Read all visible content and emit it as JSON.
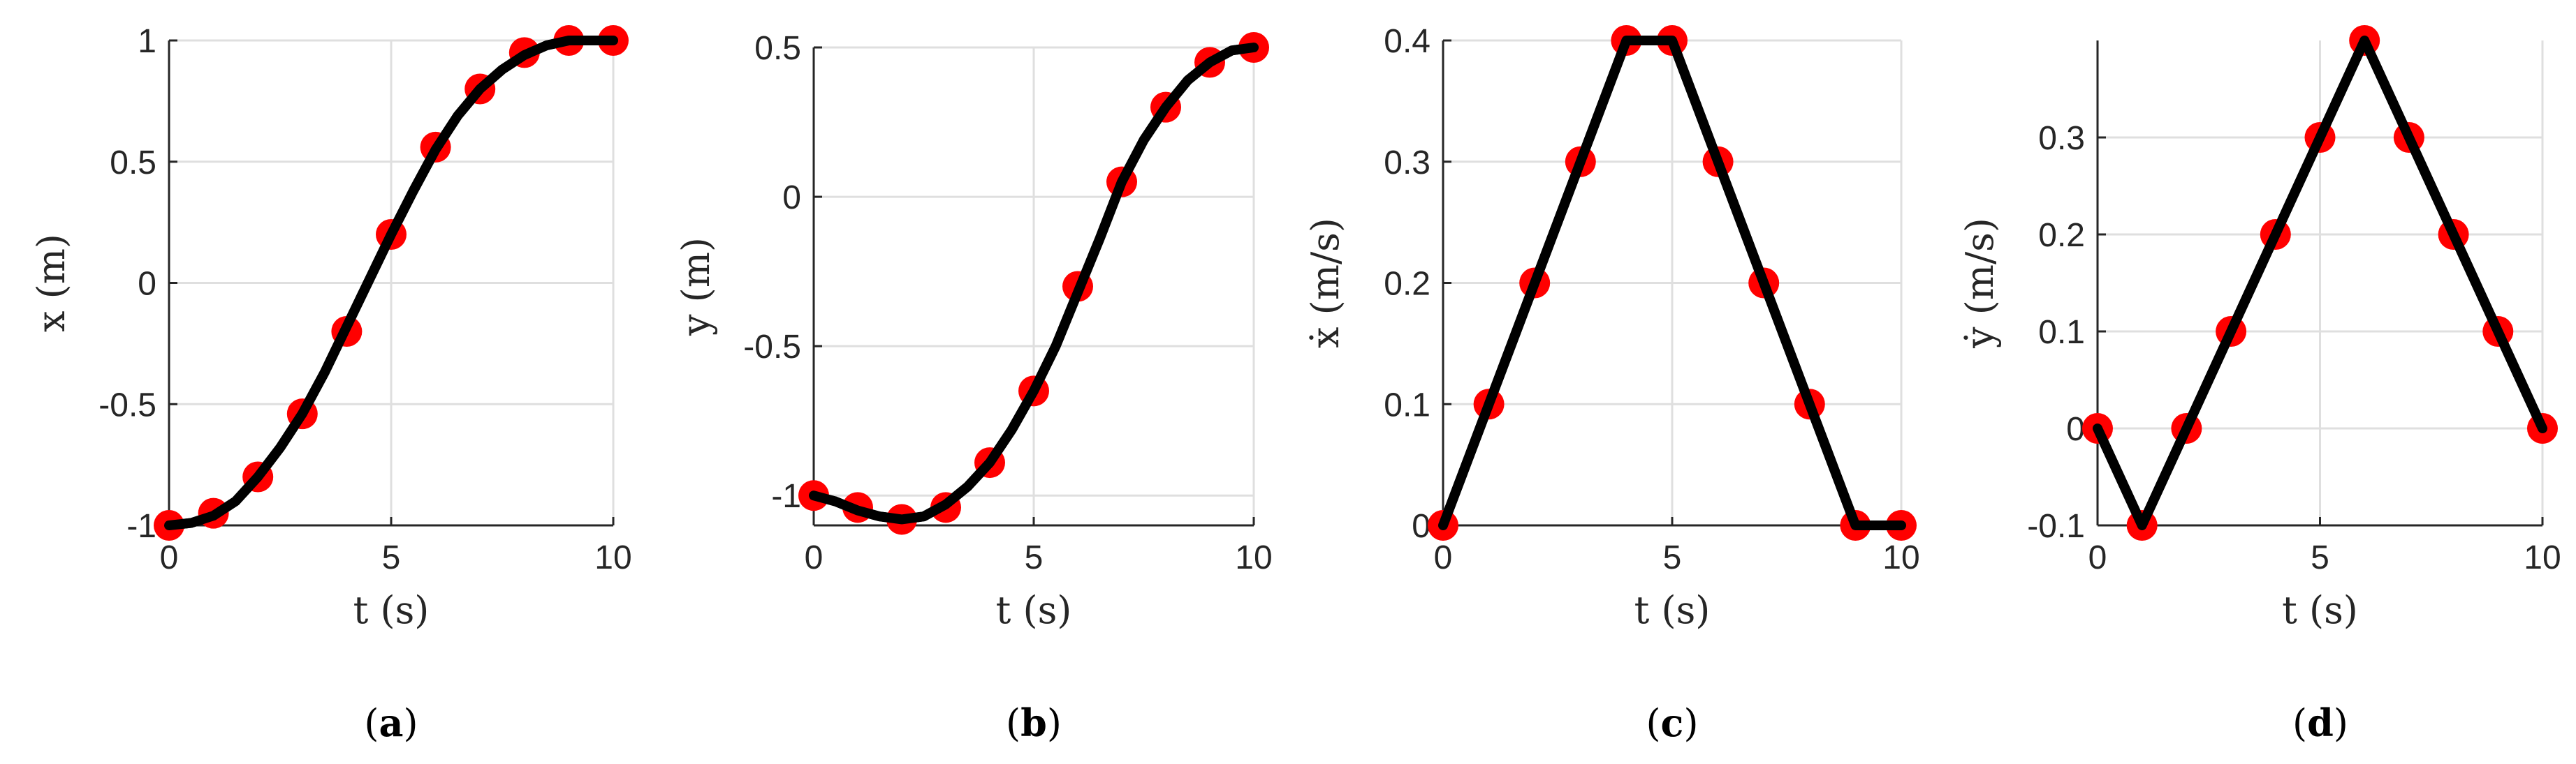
{
  "colors": {
    "line": "#000000",
    "marker": "#ff0000",
    "grid": "#dfdfdf",
    "axis": "#262626"
  },
  "chart_data": [
    {
      "type": "line",
      "panel_label": "(a)",
      "xlabel": "t (s)",
      "ylabel": "x (m)",
      "xlim": [
        0,
        10
      ],
      "ylim": [
        -1,
        1
      ],
      "xticks": [
        0,
        5,
        10
      ],
      "xtick_labels": [
        "0",
        "5",
        "10"
      ],
      "yticks": [
        -1,
        -0.5,
        0,
        0.5,
        1
      ],
      "ytick_labels": [
        "-1",
        "-0.5",
        "0",
        "0.5",
        "1"
      ],
      "grid": true,
      "series": [
        {
          "kind": "curve",
          "x": [
            0,
            0.5,
            1,
            1.5,
            2,
            2.5,
            3,
            3.5,
            4,
            4.5,
            5,
            5.5,
            6,
            6.5,
            7,
            7.5,
            8,
            8.5,
            9,
            9.5,
            10
          ],
          "y": [
            -1,
            -0.99,
            -0.96,
            -0.9,
            -0.8,
            -0.68,
            -0.54,
            -0.37,
            -0.18,
            0.01,
            0.2,
            0.38,
            0.55,
            0.69,
            0.8,
            0.88,
            0.94,
            0.98,
            1,
            1,
            1
          ]
        },
        {
          "kind": "markers",
          "x": [
            0,
            1,
            2,
            3,
            4,
            5,
            6,
            7,
            8,
            9,
            10
          ],
          "y": [
            -1,
            -0.95,
            -0.8,
            -0.54,
            -0.2,
            0.2,
            0.56,
            0.8,
            0.95,
            1,
            1
          ]
        }
      ]
    },
    {
      "type": "line",
      "panel_label": "(b)",
      "xlabel": "t (s)",
      "ylabel": "y (m)",
      "xlim": [
        0,
        10
      ],
      "ylim": [
        -1.1,
        0.5
      ],
      "xticks": [
        0,
        5,
        10
      ],
      "xtick_labels": [
        "0",
        "5",
        "10"
      ],
      "yticks": [
        -1,
        -0.5,
        0,
        0.5
      ],
      "ytick_labels": [
        "-1",
        "-0.5",
        "0",
        "0.5"
      ],
      "grid": true,
      "series": [
        {
          "kind": "curve",
          "x": [
            0,
            0.5,
            1,
            1.5,
            2,
            2.5,
            3,
            3.5,
            4,
            4.5,
            5,
            5.5,
            6,
            6.5,
            7,
            7.5,
            8,
            8.5,
            9,
            9.5,
            10
          ],
          "y": [
            -1,
            -1.02,
            -1.05,
            -1.07,
            -1.08,
            -1.07,
            -1.03,
            -0.97,
            -0.89,
            -0.78,
            -0.65,
            -0.5,
            -0.32,
            -0.14,
            0.05,
            0.19,
            0.3,
            0.39,
            0.45,
            0.49,
            0.5
          ]
        },
        {
          "kind": "markers",
          "x": [
            0,
            1,
            2,
            3,
            4,
            5,
            6,
            7,
            8,
            9,
            10
          ],
          "y": [
            -1,
            -1.04,
            -1.08,
            -1.04,
            -0.89,
            -0.65,
            -0.3,
            0.05,
            0.3,
            0.45,
            0.5
          ]
        }
      ]
    },
    {
      "type": "line",
      "panel_label": "(c)",
      "xlabel": "t (s)",
      "ylabel": "ẋ (m/s)",
      "xlim": [
        0,
        10
      ],
      "ylim": [
        0,
        0.4
      ],
      "xticks": [
        0,
        5,
        10
      ],
      "xtick_labels": [
        "0",
        "5",
        "10"
      ],
      "yticks": [
        0,
        0.1,
        0.2,
        0.3,
        0.4
      ],
      "ytick_labels": [
        "0",
        "0.1",
        "0.2",
        "0.3",
        "0.4"
      ],
      "grid": true,
      "series": [
        {
          "kind": "curve",
          "x": [
            0,
            1,
            2,
            3,
            4,
            5,
            6,
            7,
            8,
            9,
            10
          ],
          "y": [
            0,
            0.1,
            0.2,
            0.3,
            0.4,
            0.4,
            0.3,
            0.2,
            0.1,
            0,
            0
          ]
        },
        {
          "kind": "markers",
          "x": [
            0,
            1,
            2,
            3,
            4,
            5,
            6,
            7,
            8,
            9,
            10
          ],
          "y": [
            0,
            0.1,
            0.2,
            0.3,
            0.4,
            0.4,
            0.3,
            0.2,
            0.1,
            0,
            0
          ]
        }
      ]
    },
    {
      "type": "line",
      "panel_label": "(d)",
      "xlabel": "t (s)",
      "ylabel": "ẏ (m/s)",
      "xlim": [
        0,
        10
      ],
      "ylim": [
        -0.1,
        0.4
      ],
      "xticks": [
        0,
        5,
        10
      ],
      "xtick_labels": [
        "0",
        "5",
        "10"
      ],
      "yticks": [
        -0.1,
        0,
        0.1,
        0.2,
        0.3
      ],
      "ytick_labels": [
        "-0.1",
        "0",
        "0.1",
        "0.2",
        "0.3"
      ],
      "grid": true,
      "series": [
        {
          "kind": "curve",
          "x": [
            0,
            1,
            2,
            3,
            4,
            5,
            6,
            7,
            8,
            9,
            10
          ],
          "y": [
            0,
            -0.1,
            0,
            0.1,
            0.2,
            0.3,
            0.4,
            0.3,
            0.2,
            0.1,
            0
          ]
        },
        {
          "kind": "markers",
          "x": [
            0,
            1,
            2,
            3,
            4,
            5,
            6,
            7,
            8,
            9,
            10
          ],
          "y": [
            0,
            -0.1,
            0,
            0.1,
            0.2,
            0.3,
            0.4,
            0.3,
            0.2,
            0.1,
            0
          ]
        }
      ]
    }
  ]
}
